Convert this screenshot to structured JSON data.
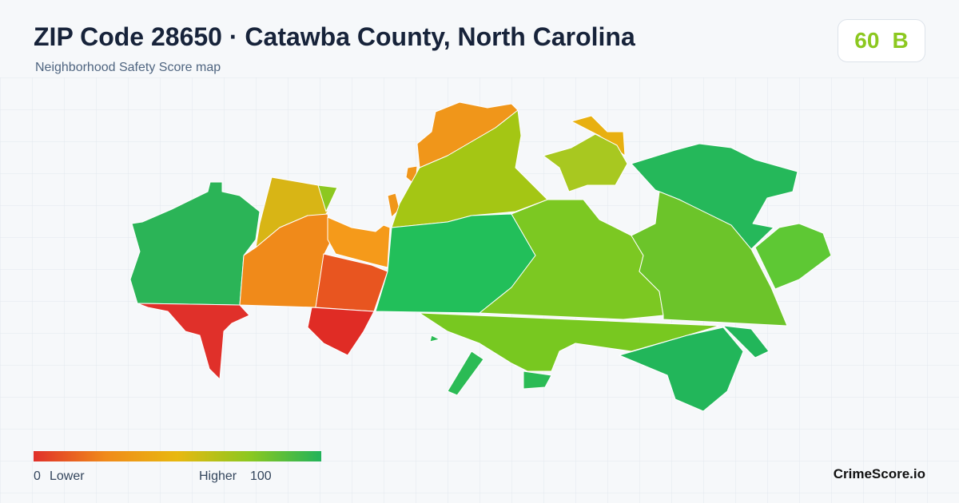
{
  "header": {
    "title": "ZIP Code 28650 · Catawba County, North Carolina",
    "subtitle": "Neighborhood Safety Score map"
  },
  "score": {
    "value": 60,
    "grade": "B"
  },
  "legend": {
    "min": 0,
    "min_label": "Lower",
    "max_label": "Higher",
    "max": 100
  },
  "brand": "CrimeScore.io"
}
